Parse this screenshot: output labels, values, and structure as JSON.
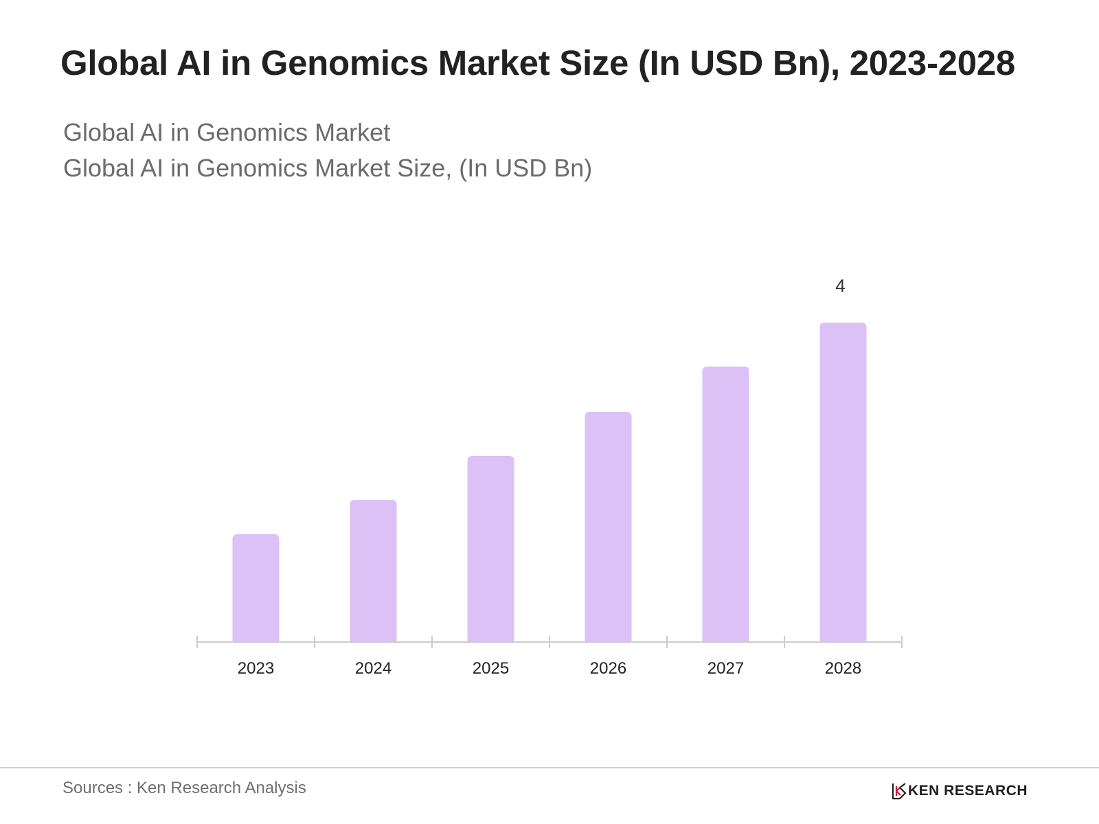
{
  "title": "Global AI in Genomics Market Size (In USD Bn), 2023-2028",
  "subtitle_1": "Global AI in Genomics Market",
  "subtitle_2": "Global AI in Genomics Market Size, (In USD Bn)",
  "source": "Sources : Ken Research Analysis",
  "brand": {
    "name": "KEN RESEARCH",
    "logo_icon": "ken-research-k-logo",
    "logo_color": "#c41e3a"
  },
  "colors": {
    "bar": "#dcc1f6",
    "axis": "#cccccc",
    "title": "#222222",
    "subtitle": "#6b6b6b"
  },
  "chart_data": {
    "type": "bar",
    "categories": [
      "2023",
      "2024",
      "2025",
      "2026",
      "2027",
      "2028"
    ],
    "values": [
      1.35,
      1.78,
      2.33,
      2.88,
      3.45,
      4.0
    ],
    "data_labels": [
      "",
      "",
      "",
      "",
      "",
      "4"
    ],
    "ylim": [
      0,
      4.6
    ],
    "grid": false,
    "legend": "none"
  }
}
